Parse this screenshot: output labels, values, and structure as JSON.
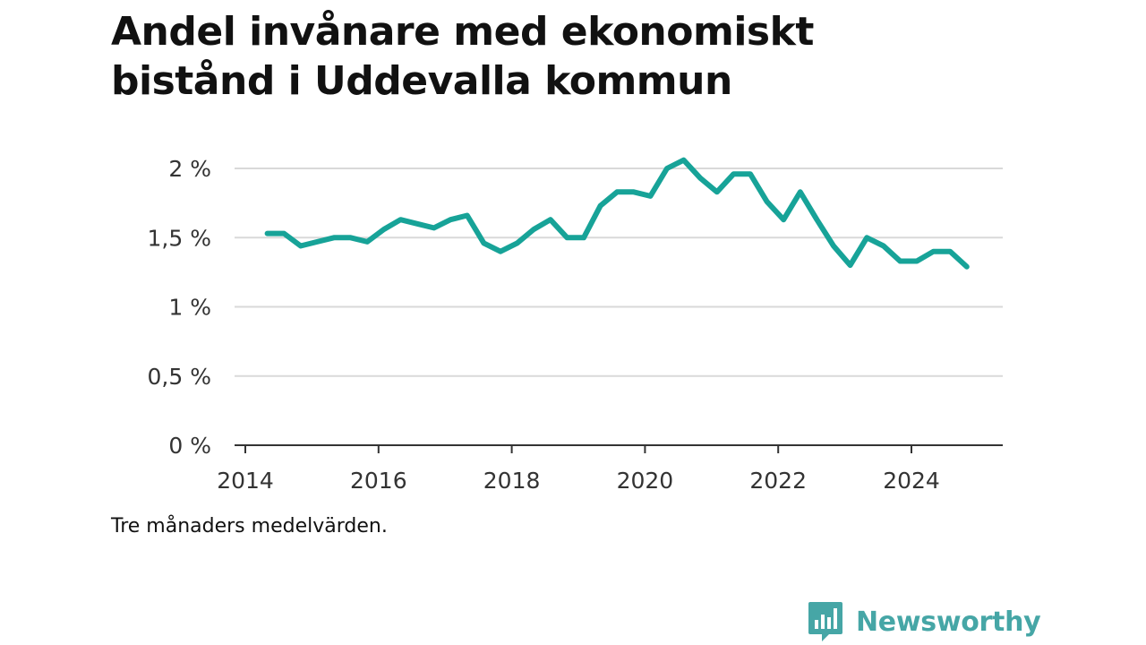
{
  "title_lines": [
    "Andel invånare med ekonomiskt",
    "bistånd i Uddevalla kommun"
  ],
  "note": "Tre månaders medelvärden.",
  "brand": {
    "name": "Newsworthy",
    "icon": "newsworthy-logo-icon",
    "color": "#46a6a6"
  },
  "colors": {
    "line": "#17a398",
    "grid": "#d9d9d9",
    "axis": "#333333"
  },
  "chart_data": {
    "type": "line",
    "title": "Andel invånare med ekonomiskt bistånd i Uddevalla kommun",
    "xlabel": "",
    "ylabel": "",
    "xlim": [
      2014,
      2025.7
    ],
    "ylim": [
      0,
      2.2
    ],
    "x_ticks": [
      2014,
      2016,
      2018,
      2020,
      2022,
      2024
    ],
    "x_tick_labels": [
      "2014",
      "2016",
      "2018",
      "2020",
      "2022",
      "2024"
    ],
    "y_ticks": [
      0,
      0.5,
      1,
      1.5,
      2
    ],
    "y_tick_labels": [
      "0 %",
      "0,5 %",
      "1 %",
      "1,5 %",
      "2 %"
    ],
    "grid": "horizontal",
    "series": [
      {
        "values": [
          [
            2014.33,
            1.53
          ],
          [
            2014.58,
            1.53
          ],
          [
            2014.83,
            1.44
          ],
          [
            2015.08,
            1.47
          ],
          [
            2015.33,
            1.5
          ],
          [
            2015.58,
            1.5
          ],
          [
            2015.83,
            1.47
          ],
          [
            2016.08,
            1.56
          ],
          [
            2016.33,
            1.63
          ],
          [
            2016.58,
            1.6
          ],
          [
            2016.83,
            1.57
          ],
          [
            2017.08,
            1.63
          ],
          [
            2017.33,
            1.66
          ],
          [
            2017.58,
            1.46
          ],
          [
            2017.83,
            1.4
          ],
          [
            2018.08,
            1.46
          ],
          [
            2018.33,
            1.56
          ],
          [
            2018.58,
            1.63
          ],
          [
            2018.83,
            1.5
          ],
          [
            2019.08,
            1.5
          ],
          [
            2019.33,
            1.73
          ],
          [
            2019.58,
            1.83
          ],
          [
            2019.83,
            1.83
          ],
          [
            2020.08,
            1.8
          ],
          [
            2020.33,
            2.0
          ],
          [
            2020.58,
            2.06
          ],
          [
            2020.83,
            1.93
          ],
          [
            2021.08,
            1.83
          ],
          [
            2021.33,
            1.96
          ],
          [
            2021.58,
            1.96
          ],
          [
            2021.83,
            1.76
          ],
          [
            2022.08,
            1.63
          ],
          [
            2022.33,
            1.83
          ],
          [
            2022.58,
            1.63
          ],
          [
            2022.83,
            1.44
          ],
          [
            2023.08,
            1.3
          ],
          [
            2023.33,
            1.5
          ],
          [
            2023.58,
            1.44
          ],
          [
            2023.83,
            1.33
          ],
          [
            2024.08,
            1.33
          ],
          [
            2024.33,
            1.4
          ],
          [
            2024.58,
            1.4
          ],
          [
            2024.83,
            1.29
          ]
        ]
      }
    ]
  }
}
